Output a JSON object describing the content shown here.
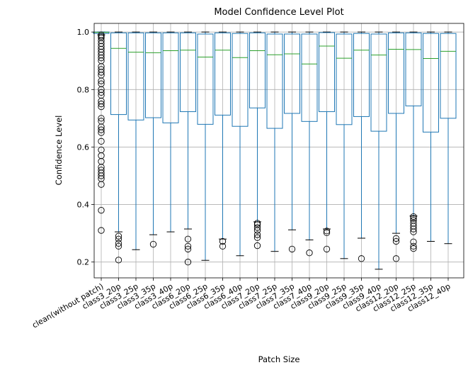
{
  "chart_data": {
    "type": "box",
    "title": "Model Confidence Level Plot",
    "xlabel": "Patch Size",
    "ylabel": "Confidence Level",
    "ylim": [
      0.145,
      1.03
    ],
    "yticks": [
      0.2,
      0.4,
      0.6,
      0.8,
      1.0
    ],
    "ytick_labels": [
      "0.2",
      "0.4",
      "0.6",
      "0.8",
      "1.0"
    ],
    "grid": true,
    "series": [
      {
        "name": "clean(without patch)",
        "q1": 0.995,
        "median": 0.999,
        "q3": 1.0,
        "whisker_low": 0.99,
        "whisker_high": 1.0,
        "fliers": [
          0.31,
          0.38,
          0.47,
          0.49,
          0.5,
          0.51,
          0.52,
          0.53,
          0.55,
          0.57,
          0.59,
          0.62,
          0.65,
          0.66,
          0.67,
          0.69,
          0.7,
          0.74,
          0.75,
          0.76,
          0.78,
          0.79,
          0.8,
          0.82,
          0.83,
          0.85,
          0.86,
          0.87,
          0.88,
          0.9,
          0.91,
          0.92,
          0.93,
          0.94,
          0.95,
          0.96,
          0.97,
          0.98,
          0.985,
          0.99
        ]
      },
      {
        "name": "class3_20p",
        "q1": 0.713,
        "median": 0.943,
        "q3": 0.997,
        "whisker_low": 0.305,
        "whisker_high": 1.0,
        "fliers": [
          0.207,
          0.255,
          0.265,
          0.28,
          0.29
        ]
      },
      {
        "name": "class3_25p",
        "q1": 0.694,
        "median": 0.93,
        "q3": 0.997,
        "whisker_low": 0.243,
        "whisker_high": 1.0,
        "fliers": []
      },
      {
        "name": "class3_35p",
        "q1": 0.702,
        "median": 0.928,
        "q3": 0.997,
        "whisker_low": 0.295,
        "whisker_high": 1.0,
        "fliers": [
          0.262
        ]
      },
      {
        "name": "class3_40p",
        "q1": 0.684,
        "median": 0.935,
        "q3": 0.997,
        "whisker_low": 0.305,
        "whisker_high": 1.0,
        "fliers": []
      },
      {
        "name": "class6_20p",
        "q1": 0.723,
        "median": 0.937,
        "q3": 0.997,
        "whisker_low": 0.315,
        "whisker_high": 1.0,
        "fliers": [
          0.2,
          0.245,
          0.255,
          0.28
        ]
      },
      {
        "name": "class6_25p",
        "q1": 0.679,
        "median": 0.913,
        "q3": 0.993,
        "whisker_low": 0.206,
        "whisker_high": 1.0,
        "fliers": []
      },
      {
        "name": "class6_35p",
        "q1": 0.711,
        "median": 0.937,
        "q3": 0.997,
        "whisker_low": 0.28,
        "whisker_high": 1.0,
        "fliers": [
          0.255,
          0.272
        ]
      },
      {
        "name": "class6_40p",
        "q1": 0.672,
        "median": 0.911,
        "q3": 0.995,
        "whisker_low": 0.222,
        "whisker_high": 1.0,
        "fliers": []
      },
      {
        "name": "class7_20p",
        "q1": 0.736,
        "median": 0.935,
        "q3": 0.997,
        "whisker_low": 0.34,
        "whisker_high": 1.0,
        "fliers": [
          0.257,
          0.285,
          0.295,
          0.31,
          0.32,
          0.33,
          0.335
        ]
      },
      {
        "name": "class7_25p",
        "q1": 0.665,
        "median": 0.921,
        "q3": 0.993,
        "whisker_low": 0.237,
        "whisker_high": 1.0,
        "fliers": []
      },
      {
        "name": "class7_35p",
        "q1": 0.717,
        "median": 0.924,
        "q3": 0.993,
        "whisker_low": 0.312,
        "whisker_high": 1.0,
        "fliers": [
          0.245
        ]
      },
      {
        "name": "class7_40p",
        "q1": 0.689,
        "median": 0.889,
        "q3": 0.993,
        "whisker_low": 0.277,
        "whisker_high": 1.0,
        "fliers": [
          0.232
        ]
      },
      {
        "name": "class9_20p",
        "q1": 0.723,
        "median": 0.951,
        "q3": 0.998,
        "whisker_low": 0.315,
        "whisker_high": 1.0,
        "fliers": [
          0.245,
          0.302,
          0.308
        ]
      },
      {
        "name": "class9_25p",
        "q1": 0.678,
        "median": 0.909,
        "q3": 0.993,
        "whisker_low": 0.212,
        "whisker_high": 1.0,
        "fliers": []
      },
      {
        "name": "class9_35p",
        "q1": 0.706,
        "median": 0.937,
        "q3": 0.995,
        "whisker_low": 0.283,
        "whisker_high": 1.0,
        "fliers": [
          0.212
        ]
      },
      {
        "name": "class9_40p",
        "q1": 0.655,
        "median": 0.92,
        "q3": 0.993,
        "whisker_low": 0.175,
        "whisker_high": 1.0,
        "fliers": []
      },
      {
        "name": "class12_20p",
        "q1": 0.717,
        "median": 0.94,
        "q3": 0.997,
        "whisker_low": 0.3,
        "whisker_high": 1.0,
        "fliers": [
          0.212,
          0.272,
          0.282
        ]
      },
      {
        "name": "class12_25p",
        "q1": 0.743,
        "median": 0.939,
        "q3": 0.997,
        "whisker_low": 0.36,
        "whisker_high": 1.0,
        "fliers": [
          0.247,
          0.255,
          0.27,
          0.305,
          0.315,
          0.325,
          0.335,
          0.345,
          0.352,
          0.358
        ]
      },
      {
        "name": "class12_35p",
        "q1": 0.652,
        "median": 0.908,
        "q3": 0.995,
        "whisker_low": 0.272,
        "whisker_high": 1.0,
        "fliers": []
      },
      {
        "name": "class12_40p",
        "q1": 0.7,
        "median": 0.933,
        "q3": 0.995,
        "whisker_low": 0.264,
        "whisker_high": 1.0,
        "fliers": []
      }
    ],
    "colors": {
      "box": "#1f77b4",
      "median": "#2ca02c",
      "flier": "#000000",
      "cap": "#000000",
      "grid": "#b0b0b0"
    }
  }
}
